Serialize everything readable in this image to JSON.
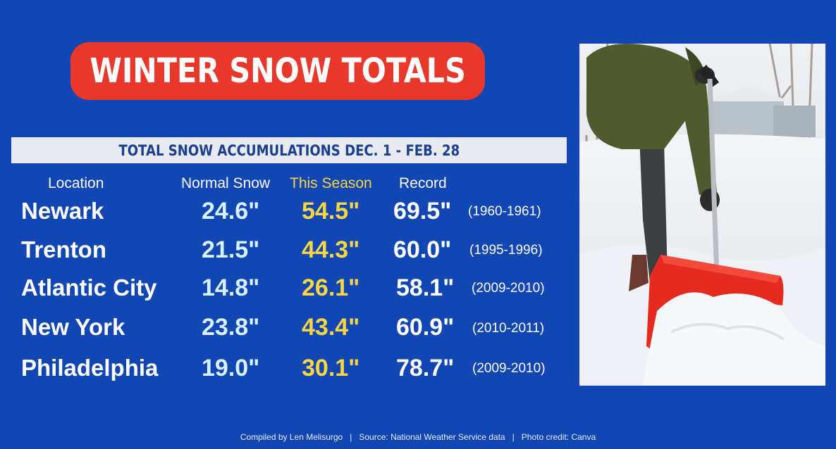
{
  "title": "WINTER SNOW TOTALS",
  "subtitle": "TOTAL SNOW ACCUMULATIONS DEC. 1 - FEB. 28",
  "headers": {
    "location": "Location",
    "normal": "Normal Snow",
    "season": "This Season",
    "record": "Record"
  },
  "rows": [
    {
      "location": "Newark",
      "normal": "24.6\"",
      "season": "54.5\"",
      "record": "69.5\"",
      "years": "(1960-1961)"
    },
    {
      "location": "Trenton",
      "normal": "21.5\"",
      "season": "44.3\"",
      "record": "60.0\"",
      "years": "(1995-1996)"
    },
    {
      "location": "Atlantic City",
      "normal": "14.8\"",
      "season": "26.1\"",
      "record": "58.1\"",
      "years": "(2009-2010)"
    },
    {
      "location": "New York",
      "normal": "23.8\"",
      "season": "43.4\"",
      "record": "60.9\"",
      "years": "(2010-2011)"
    },
    {
      "location": "Philadelphia",
      "normal": "19.0\"",
      "season": "30.1\"",
      "record": "78.7\"",
      "years": "(2009-2010)"
    }
  ],
  "footer": {
    "compiled": "Compiled by Len Melisurgo",
    "sep": "|",
    "source": "Source: National Weather Service data",
    "credit": "Photo credit: Canva"
  },
  "colors": {
    "background": "#1246b3",
    "title_pill": "#e8372b",
    "season_yellow": "#f6d743",
    "normal_cyan": "#d8f2fb",
    "shovel_red": "#e52a1f"
  },
  "photo": {
    "icon": "snow-shovel-photo"
  }
}
